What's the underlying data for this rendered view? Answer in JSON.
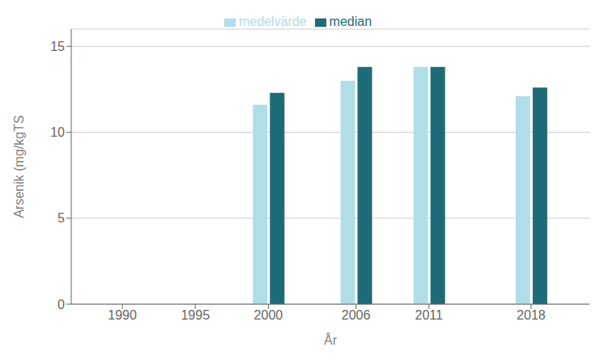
{
  "chart_data": {
    "type": "bar",
    "x": [
      2000,
      2006,
      2011,
      2018
    ],
    "series": [
      {
        "name": "medelvärde",
        "color": "#b0dde8",
        "values": [
          11.6,
          13.0,
          13.8,
          12.1
        ]
      },
      {
        "name": "median",
        "color": "#1e6b78",
        "values": [
          12.3,
          13.8,
          13.8,
          12.6
        ]
      }
    ],
    "xlabel": "År",
    "ylabel": "Arsenik (mg/kgTS",
    "xlim": [
      1986.5,
      2022
    ],
    "xticks": [
      1990,
      1995,
      2000,
      2006,
      2011,
      2018
    ],
    "ylim": [
      0,
      16
    ],
    "yticks": [
      0,
      5,
      10,
      15
    ],
    "grid": true,
    "legend": "top"
  }
}
